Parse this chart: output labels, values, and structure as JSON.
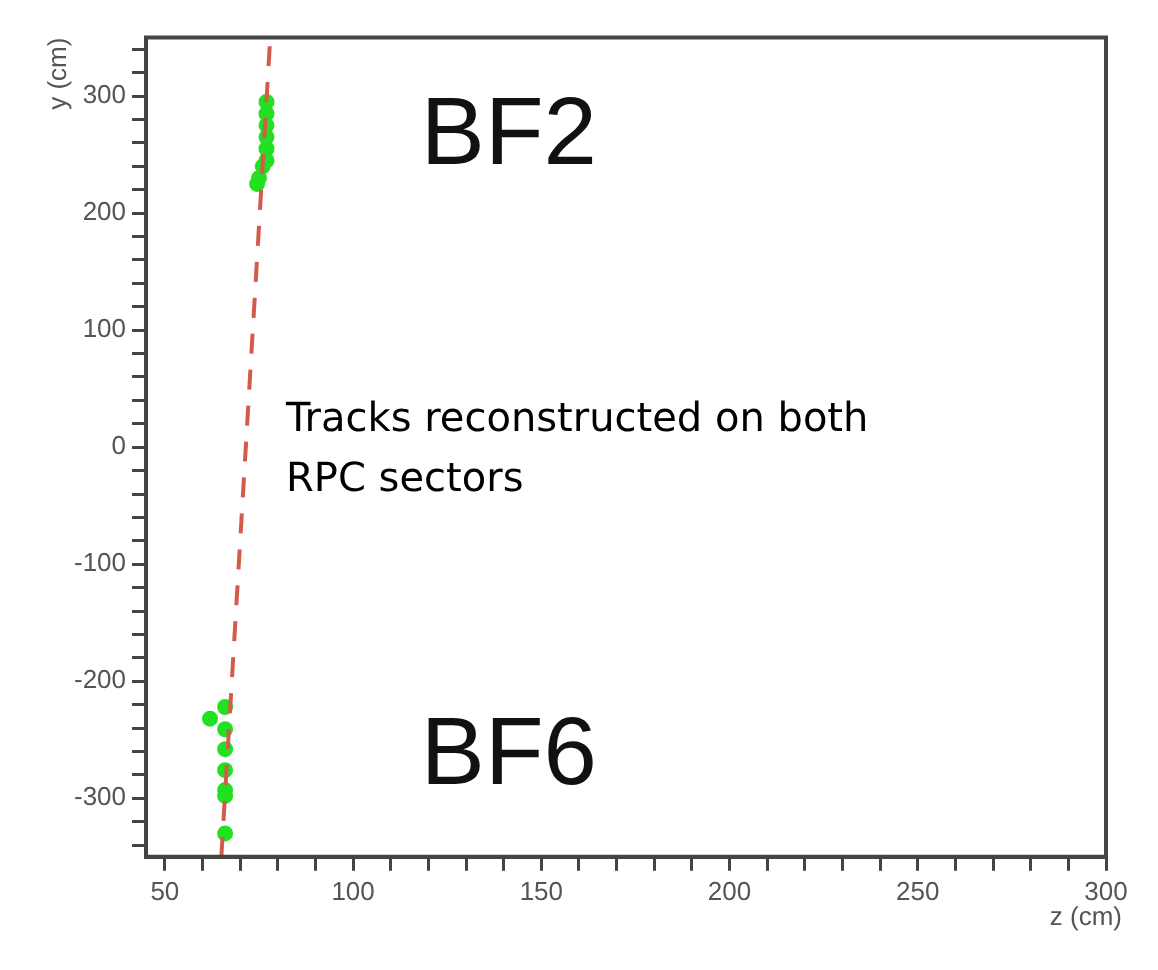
{
  "chart_data": {
    "type": "scatter",
    "xlabel": "z (cm)",
    "ylabel": "y (cm)",
    "xlim": [
      45,
      300
    ],
    "ylim": [
      -350,
      350
    ],
    "xticks": [
      50,
      {
        "value": 60,
        "label": null
      },
      {
        "value": 70,
        "label": null
      },
      {
        "value": 80,
        "label": null
      },
      {
        "value": 90,
        "label": null
      },
      100,
      {
        "value": 110,
        "label": null
      },
      {
        "value": 120,
        "label": null
      },
      {
        "value": 130,
        "label": null
      },
      {
        "value": 140,
        "label": null
      },
      150,
      {
        "value": 160,
        "label": null
      },
      {
        "value": 170,
        "label": null
      },
      {
        "value": 180,
        "label": null
      },
      {
        "value": 190,
        "label": null
      },
      200,
      {
        "value": 210,
        "label": null
      },
      {
        "value": 220,
        "label": null
      },
      {
        "value": 230,
        "label": null
      },
      {
        "value": 240,
        "label": null
      },
      250,
      {
        "value": 260,
        "label": null
      },
      {
        "value": 270,
        "label": null
      },
      {
        "value": 280,
        "label": null
      },
      {
        "value": 290,
        "label": null
      },
      300
    ],
    "yticks": [
      {
        "value": -340,
        "label": null
      },
      {
        "value": -320,
        "label": null
      },
      -300,
      {
        "value": -280,
        "label": null
      },
      {
        "value": -260,
        "label": null
      },
      {
        "value": -240,
        "label": null
      },
      {
        "value": -220,
        "label": null
      },
      -200,
      {
        "value": -180,
        "label": null
      },
      {
        "value": -160,
        "label": null
      },
      {
        "value": -140,
        "label": null
      },
      {
        "value": -120,
        "label": null
      },
      -100,
      {
        "value": -80,
        "label": null
      },
      {
        "value": -60,
        "label": null
      },
      {
        "value": -40,
        "label": null
      },
      {
        "value": -20,
        "label": null
      },
      0,
      {
        "value": 20,
        "label": null
      },
      {
        "value": 40,
        "label": null
      },
      {
        "value": 60,
        "label": null
      },
      {
        "value": 80,
        "label": null
      },
      100,
      {
        "value": 120,
        "label": null
      },
      {
        "value": 140,
        "label": null
      },
      {
        "value": 160,
        "label": null
      },
      {
        "value": 180,
        "label": null
      },
      200,
      {
        "value": 220,
        "label": null
      },
      {
        "value": 240,
        "label": null
      },
      {
        "value": 260,
        "label": null
      },
      {
        "value": 280,
        "label": null
      },
      300,
      {
        "value": 320,
        "label": null
      },
      {
        "value": 340,
        "label": null
      }
    ],
    "grid": false,
    "legend": false,
    "series": [
      {
        "type": "line",
        "color": "#d45a4a",
        "line_style": "dashed",
        "x": [
          65,
          78
        ],
        "values": [
          -350,
          350
        ]
      },
      {
        "marker": "circle",
        "color": "#22e022",
        "x": [
          77,
          77,
          77,
          77,
          77,
          77,
          76,
          75,
          74.5,
          66,
          62,
          66,
          66,
          66,
          66,
          66,
          66
        ],
        "values": [
          295,
          285,
          275,
          265,
          255,
          245,
          240,
          230,
          225,
          -222,
          -232,
          -241,
          -258,
          -276,
          -293,
          -298,
          -330
        ]
      }
    ],
    "annotations": [
      "BF2",
      "BF6",
      "Tracks reconstructed on both RPC sectors"
    ]
  }
}
